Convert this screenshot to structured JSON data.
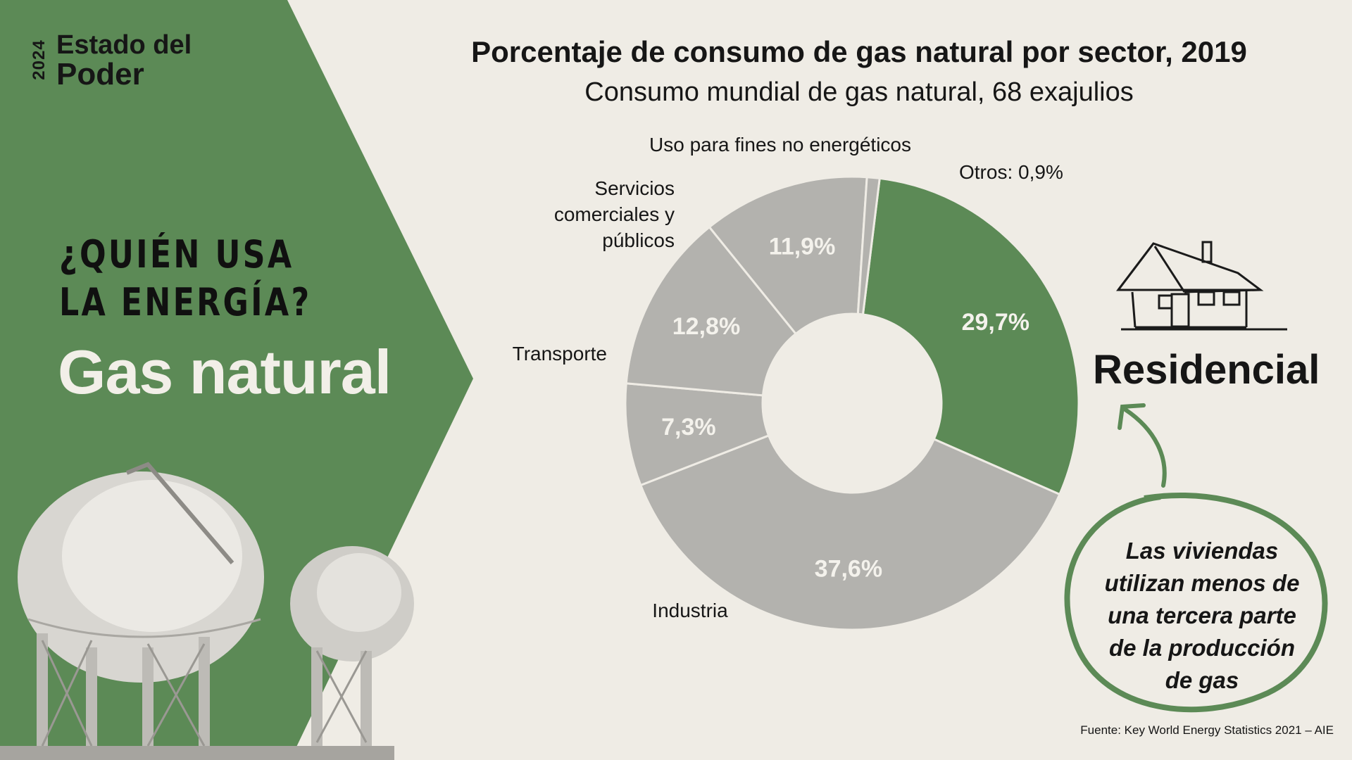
{
  "brand": {
    "year": "2024",
    "name_line1": "Estado del",
    "name_line2": "Poder"
  },
  "left_panel": {
    "question_line1": "¿QUIÉN USA",
    "question_line2": "LA ENERGÍA?",
    "topic": "Gas natural"
  },
  "callout": {
    "label": "Residencial",
    "text_lines": [
      "Las viviendas",
      "utilizan menos de",
      "una tercera parte",
      "de la producción",
      "de gas"
    ]
  },
  "source": "Fuente: Key World Energy Statistics 2021 – AIE",
  "colors": {
    "green": "#5c8a56",
    "gray": "#b3b2ae",
    "background": "#efece5",
    "text": "#161616"
  },
  "icons": [
    "house-icon",
    "curved-arrow-icon",
    "gas-spheres-illustration"
  ],
  "chart_data": {
    "type": "pie",
    "style": "donut",
    "title": "Porcentaje de consumo de gas natural por sector, 2019",
    "subtitle": "Consumo mundial de gas natural, 68 exajulios",
    "slices": [
      {
        "label": "Residencial",
        "value": 29.7,
        "value_label": "29,7%",
        "highlight": true
      },
      {
        "label": "Industria",
        "value": 37.6,
        "value_label": "37,6%",
        "highlight": false
      },
      {
        "label": "Transporte",
        "value": 7.3,
        "value_label": "7,3%",
        "highlight": false
      },
      {
        "label": "Servicios comerciales y públicos",
        "value": 12.8,
        "value_label": "12,8%",
        "highlight": false
      },
      {
        "label": "Uso para fines no energéticos",
        "value": 11.9,
        "value_label": "11,9%",
        "highlight": false
      },
      {
        "label": "Otros: 0,9%",
        "value": 0.9,
        "value_label": "",
        "highlight": false
      }
    ]
  }
}
